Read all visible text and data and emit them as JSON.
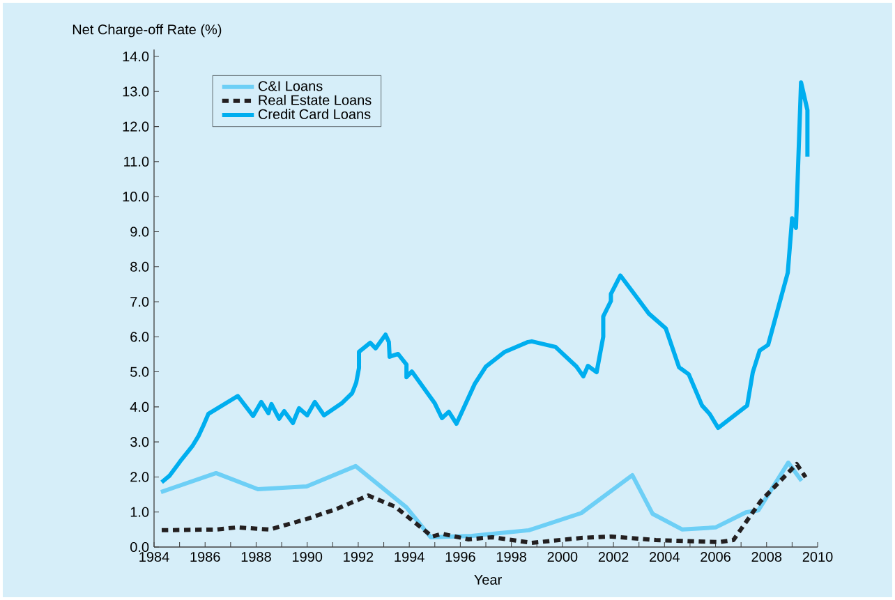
{
  "chart_data": {
    "type": "line",
    "xlabel": "Year",
    "ylabel": "Net Charge-off Rate (%)",
    "xlim": [
      1984,
      2010
    ],
    "ylim": [
      0,
      14.2
    ],
    "xticks": [
      1984,
      {
        "value": 1985,
        "label": null
      },
      1986,
      {
        "value": 1987,
        "label": null
      },
      1988,
      {
        "value": 1989,
        "label": null
      },
      1990,
      {
        "value": 1991,
        "label": null
      },
      1992,
      {
        "value": 1993,
        "label": null
      },
      1994,
      {
        "value": 1995,
        "label": null
      },
      1996,
      {
        "value": 1997,
        "label": null
      },
      1998,
      {
        "value": 1999,
        "label": null
      },
      2000,
      {
        "value": 2001,
        "label": null
      },
      2002,
      {
        "value": 2003,
        "label": null
      },
      2004,
      {
        "value": 2005,
        "label": null
      },
      2006,
      {
        "value": 2007,
        "label": null
      },
      2008,
      {
        "value": 2009,
        "label": null
      },
      2010
    ],
    "yticks": [
      {
        "value": 0,
        "label": "0.0"
      },
      {
        "value": 1,
        "label": "1.0"
      },
      {
        "value": 2,
        "label": "2.0"
      },
      {
        "value": 3,
        "label": "3.0"
      },
      {
        "value": 4,
        "label": "4.0"
      },
      {
        "value": 5,
        "label": "5.0"
      },
      {
        "value": 6,
        "label": "6.0"
      },
      {
        "value": 7,
        "label": "7.0"
      },
      {
        "value": 8,
        "label": "8.0"
      },
      {
        "value": 9,
        "label": "9.0"
      },
      {
        "value": 10,
        "label": "10.0"
      },
      {
        "value": 11,
        "label": "11.0"
      },
      {
        "value": 12,
        "label": "12.0"
      },
      {
        "value": 13,
        "label": "13.0"
      },
      {
        "value": 14,
        "label": "14.0"
      }
    ],
    "legend": "top left",
    "series": [
      {
        "name": "C&I Loans",
        "color": "#6dcff6",
        "line_style": "solid",
        "x": [
          1984.27,
          1986.43,
          1988.07,
          1989.98,
          1991.9,
          1993.89,
          1994.84,
          1996.45,
          1998.69,
          2000.74,
          2002.74,
          2003.53,
          2004.7,
          2006.0,
          2007.19,
          2007.68,
          2008.85,
          2009.37
        ],
        "values": [
          1.57,
          2.11,
          1.65,
          1.73,
          2.31,
          1.13,
          0.28,
          0.32,
          0.48,
          0.97,
          2.05,
          0.95,
          0.5,
          0.56,
          0.99,
          1.05,
          2.41,
          1.89
        ]
      },
      {
        "name": "Real Estate Loans",
        "color": "#231f20",
        "line_style": "dashed",
        "x": [
          1984.3,
          1986.43,
          1987.25,
          1988.53,
          1989.98,
          1991.16,
          1992.39,
          1993.45,
          1994.9,
          1995.28,
          1996.32,
          1997.25,
          1998.8,
          2000.74,
          2001.92,
          2003.66,
          2006.12,
          2006.7,
          2007.77,
          2009.18,
          2009.53
        ],
        "values": [
          0.48,
          0.5,
          0.56,
          0.5,
          0.8,
          1.09,
          1.47,
          1.15,
          0.3,
          0.38,
          0.22,
          0.28,
          0.12,
          0.26,
          0.3,
          0.2,
          0.14,
          0.2,
          1.31,
          2.37,
          1.99
        ]
      },
      {
        "name": "Credit Card Loans",
        "color": "#00aeef",
        "line_style": "solid",
        "x": [
          1984.3,
          1984.6,
          1985.07,
          1985.5,
          1985.75,
          1985.94,
          1986.13,
          1987.28,
          1987.88,
          1988.2,
          1988.48,
          1988.6,
          1988.9,
          1989.1,
          1989.44,
          1989.68,
          1990.0,
          1990.3,
          1990.66,
          1991.35,
          1991.76,
          1991.92,
          1992.03,
          1992.03,
          1992.47,
          1992.68,
          1993.07,
          1993.2,
          1993.23,
          1993.56,
          1993.89,
          1993.89,
          1994.1,
          1995.0,
          1995.28,
          1995.55,
          1995.85,
          1996.56,
          1997.0,
          1997.74,
          1998.65,
          1998.8,
          1999.73,
          2000.55,
          2000.82,
          2001.0,
          2001.34,
          2001.6,
          2001.6,
          2001.9,
          2001.9,
          2002.27,
          2002.9,
          2003.39,
          2004.05,
          2004.57,
          2004.95,
          2005.47,
          2005.77,
          2006.1,
          2007.24,
          2007.46,
          2007.73,
          2008.06,
          2008.83,
          2009.0,
          2009.15,
          2009.35,
          2009.6,
          2009.6
        ],
        "values": [
          1.85,
          2.03,
          2.49,
          2.88,
          3.18,
          3.48,
          3.8,
          4.31,
          3.74,
          4.14,
          3.82,
          4.08,
          3.66,
          3.88,
          3.54,
          3.96,
          3.76,
          4.14,
          3.76,
          4.1,
          4.39,
          4.69,
          5.11,
          5.57,
          5.83,
          5.67,
          6.06,
          5.85,
          5.43,
          5.51,
          5.21,
          4.85,
          5.01,
          4.1,
          3.68,
          3.86,
          3.52,
          4.65,
          5.15,
          5.57,
          5.85,
          5.87,
          5.71,
          5.15,
          4.87,
          5.17,
          4.99,
          6.0,
          6.58,
          7.02,
          7.22,
          7.75,
          7.14,
          6.66,
          6.24,
          5.13,
          4.93,
          4.04,
          3.8,
          3.4,
          4.04,
          4.99,
          5.61,
          5.77,
          7.83,
          9.38,
          9.11,
          13.26,
          12.47,
          11.14
        ]
      }
    ]
  }
}
